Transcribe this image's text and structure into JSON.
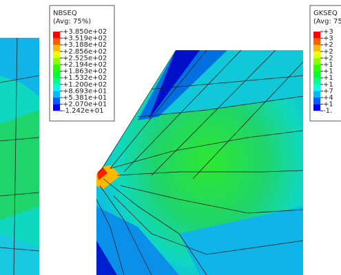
{
  "legends": [
    {
      "title": "NBSEQ",
      "subtitle": "(Avg: 75%)",
      "labels": [
        "+3.850e+02",
        "+3.519e+02",
        "+3.188e+02",
        "+2.856e+02",
        "+2.525e+02",
        "+2.194e+02",
        "+1.863e+02",
        "+1.532e+02",
        "+1.200e+02",
        "+8.693e+01",
        "+5.381e+01",
        "+2.070e+01",
        "-1.242e+01"
      ]
    },
    {
      "title": "GKSEQ",
      "subtitle": "(Avg: 75",
      "labels": [
        "+3",
        "+3",
        "+2",
        "+2",
        "+2",
        "+1",
        "+1",
        "+1",
        "+1",
        "+7",
        "+4",
        "+1",
        "-1."
      ]
    }
  ]
}
